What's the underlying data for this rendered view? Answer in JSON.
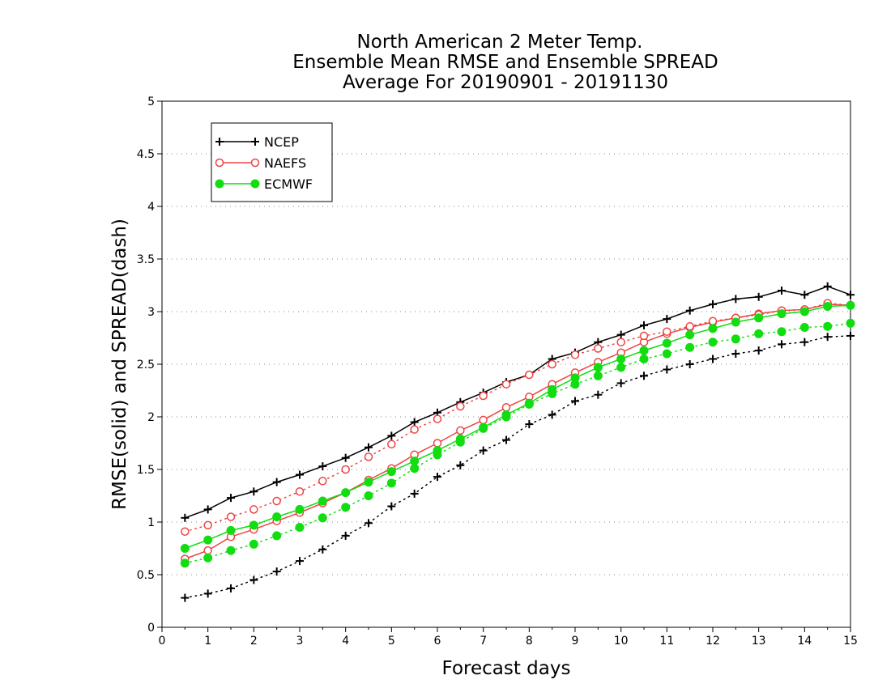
{
  "chart_data": {
    "type": "line",
    "title": [
      "North American 2 Meter Temp.",
      "Ensemble Mean RMSE and Ensemble SPREAD",
      "Average For 20190901 - 20191130"
    ],
    "xlabel": "Forecast days",
    "ylabel": "RMSE(solid) and SPREAD(dash)",
    "xlim": [
      0,
      15
    ],
    "ylim": [
      0,
      5
    ],
    "xticks": [
      0,
      1,
      2,
      3,
      4,
      5,
      6,
      7,
      8,
      9,
      10,
      11,
      12,
      13,
      14,
      15
    ],
    "xtick_labels": [
      "0",
      "1",
      "2",
      "3",
      "4",
      "5",
      "6",
      "7",
      "8",
      "9",
      "10",
      "11",
      "12",
      "13",
      "14",
      "15"
    ],
    "yticks": [
      0,
      0.5,
      1,
      1.5,
      2,
      2.5,
      3,
      3.5,
      4,
      4.5,
      5
    ],
    "ytick_labels": [
      "0",
      "0.5",
      "1",
      "1.5",
      "2",
      "2.5",
      "3",
      "3.5",
      "4",
      "4.5",
      "5"
    ],
    "grid": "horizontal dotted",
    "legend_position": "top-left",
    "x": [
      0.5,
      1,
      1.5,
      2,
      2.5,
      3,
      3.5,
      4,
      4.5,
      5,
      5.5,
      6,
      6.5,
      7,
      7.5,
      8,
      8.5,
      9,
      9.5,
      10,
      10.5,
      11,
      11.5,
      12,
      12.5,
      13,
      13.5,
      14,
      14.5,
      15
    ],
    "series": [
      {
        "name": "NCEP",
        "color": "#000000",
        "marker": "plus",
        "rmse": [
          1.04,
          1.12,
          1.23,
          1.29,
          1.38,
          1.45,
          1.53,
          1.61,
          1.71,
          1.82,
          1.95,
          2.04,
          2.14,
          2.23,
          2.33,
          2.4,
          2.55,
          2.61,
          2.71,
          2.78,
          2.87,
          2.93,
          3.01,
          3.07,
          3.12,
          3.14,
          3.2,
          3.16,
          3.24,
          3.16
        ],
        "spread": [
          0.28,
          0.32,
          0.37,
          0.45,
          0.53,
          0.63,
          0.74,
          0.87,
          0.99,
          1.15,
          1.27,
          1.43,
          1.54,
          1.68,
          1.78,
          1.93,
          2.02,
          2.15,
          2.21,
          2.32,
          2.39,
          2.45,
          2.5,
          2.55,
          2.6,
          2.63,
          2.69,
          2.71,
          2.76,
          2.77
        ]
      },
      {
        "name": "NAEFS",
        "color": "#ee4444",
        "marker": "open-circle",
        "rmse": [
          0.65,
          0.73,
          0.86,
          0.93,
          1.01,
          1.09,
          1.18,
          1.28,
          1.4,
          1.51,
          1.64,
          1.75,
          1.87,
          1.97,
          2.09,
          2.19,
          2.31,
          2.42,
          2.52,
          2.61,
          2.71,
          2.79,
          2.85,
          2.9,
          2.94,
          2.98,
          3.01,
          3.02,
          3.07,
          3.06
        ],
        "spread": [
          0.91,
          0.97,
          1.05,
          1.12,
          1.2,
          1.29,
          1.39,
          1.5,
          1.62,
          1.74,
          1.88,
          1.98,
          2.1,
          2.2,
          2.31,
          2.4,
          2.5,
          2.59,
          2.65,
          2.71,
          2.77,
          2.81,
          2.86,
          2.91,
          2.94,
          2.97,
          3.01,
          3.02,
          3.08,
          3.06
        ]
      },
      {
        "name": "ECMWF",
        "color": "#11dd11",
        "marker": "filled-circle",
        "rmse": [
          0.75,
          0.83,
          0.92,
          0.97,
          1.05,
          1.12,
          1.2,
          1.28,
          1.38,
          1.48,
          1.58,
          1.68,
          1.79,
          1.9,
          2.02,
          2.13,
          2.26,
          2.37,
          2.47,
          2.55,
          2.63,
          2.7,
          2.78,
          2.84,
          2.9,
          2.94,
          2.98,
          3.0,
          3.05,
          3.06
        ],
        "spread": [
          0.61,
          0.66,
          0.73,
          0.79,
          0.87,
          0.95,
          1.04,
          1.14,
          1.25,
          1.37,
          1.51,
          1.64,
          1.76,
          1.89,
          2.0,
          2.12,
          2.22,
          2.31,
          2.39,
          2.47,
          2.55,
          2.6,
          2.66,
          2.71,
          2.74,
          2.79,
          2.81,
          2.85,
          2.86,
          2.89
        ]
      }
    ]
  }
}
